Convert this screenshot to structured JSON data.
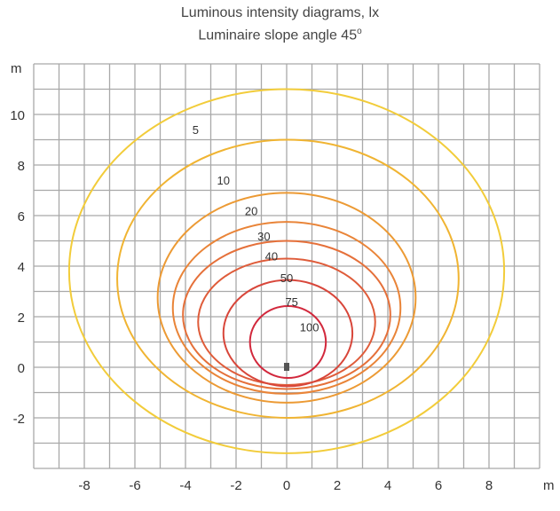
{
  "chart_data": {
    "type": "contour",
    "title": "Luminous intensity diagrams, lx",
    "subtitle": "Luminaire slope angle 45°",
    "subtitle_text": "Luminaire slope angle 45",
    "subtitle_sup": "o",
    "xlabel": "m",
    "ylabel": "m",
    "xlim": [
      -10,
      10
    ],
    "ylim": [
      -4,
      12
    ],
    "grid": true,
    "x_ticks": [
      -8,
      -6,
      -4,
      -2,
      0,
      2,
      4,
      6,
      8
    ],
    "y_ticks": [
      -2,
      0,
      2,
      4,
      6,
      8,
      10
    ],
    "luminaire_position": [
      0,
      0
    ],
    "contours": [
      {
        "label": "5",
        "value": 5,
        "color": "#f2cc3a",
        "cx": 0,
        "cy": 3.8,
        "rx": 8.6,
        "ry": 7.2,
        "label_pos": [
          -3.6,
          9.4
        ]
      },
      {
        "label": "10",
        "value": 10,
        "color": "#f0b432",
        "cx": 0.05,
        "cy": 3.5,
        "rx": 6.75,
        "ry": 5.5,
        "label_pos": [
          -2.5,
          7.4
        ]
      },
      {
        "label": "20",
        "value": 20,
        "color": "#ec9a34",
        "cx": 0,
        "cy": 2.75,
        "rx": 5.1,
        "ry": 4.15,
        "label_pos": [
          -1.4,
          6.2
        ]
      },
      {
        "label": "30",
        "value": 30,
        "color": "#e98438",
        "cx": 0,
        "cy": 2.35,
        "rx": 4.5,
        "ry": 3.4,
        "label_pos": [
          -0.9,
          5.2
        ]
      },
      {
        "label": "40",
        "value": 40,
        "color": "#e5703a",
        "cx": 0,
        "cy": 2.07,
        "rx": 4.1,
        "ry": 2.93,
        "label_pos": [
          -0.6,
          4.4
        ]
      },
      {
        "label": "50",
        "value": 50,
        "color": "#df5c3a",
        "cx": 0,
        "cy": 1.8,
        "rx": 3.5,
        "ry": 2.5,
        "label_pos": [
          0,
          3.55
        ]
      },
      {
        "label": "75",
        "value": 75,
        "color": "#d8463a",
        "cx": 0.05,
        "cy": 1.35,
        "rx": 2.55,
        "ry": 2.1,
        "label_pos": [
          0.2,
          2.6
        ]
      },
      {
        "label": "100",
        "value": 100,
        "color": "#d2283c",
        "cx": 0.05,
        "cy": 1.0,
        "rx": 1.5,
        "ry": 1.42,
        "label_pos": [
          0.9,
          1.6
        ]
      }
    ]
  }
}
